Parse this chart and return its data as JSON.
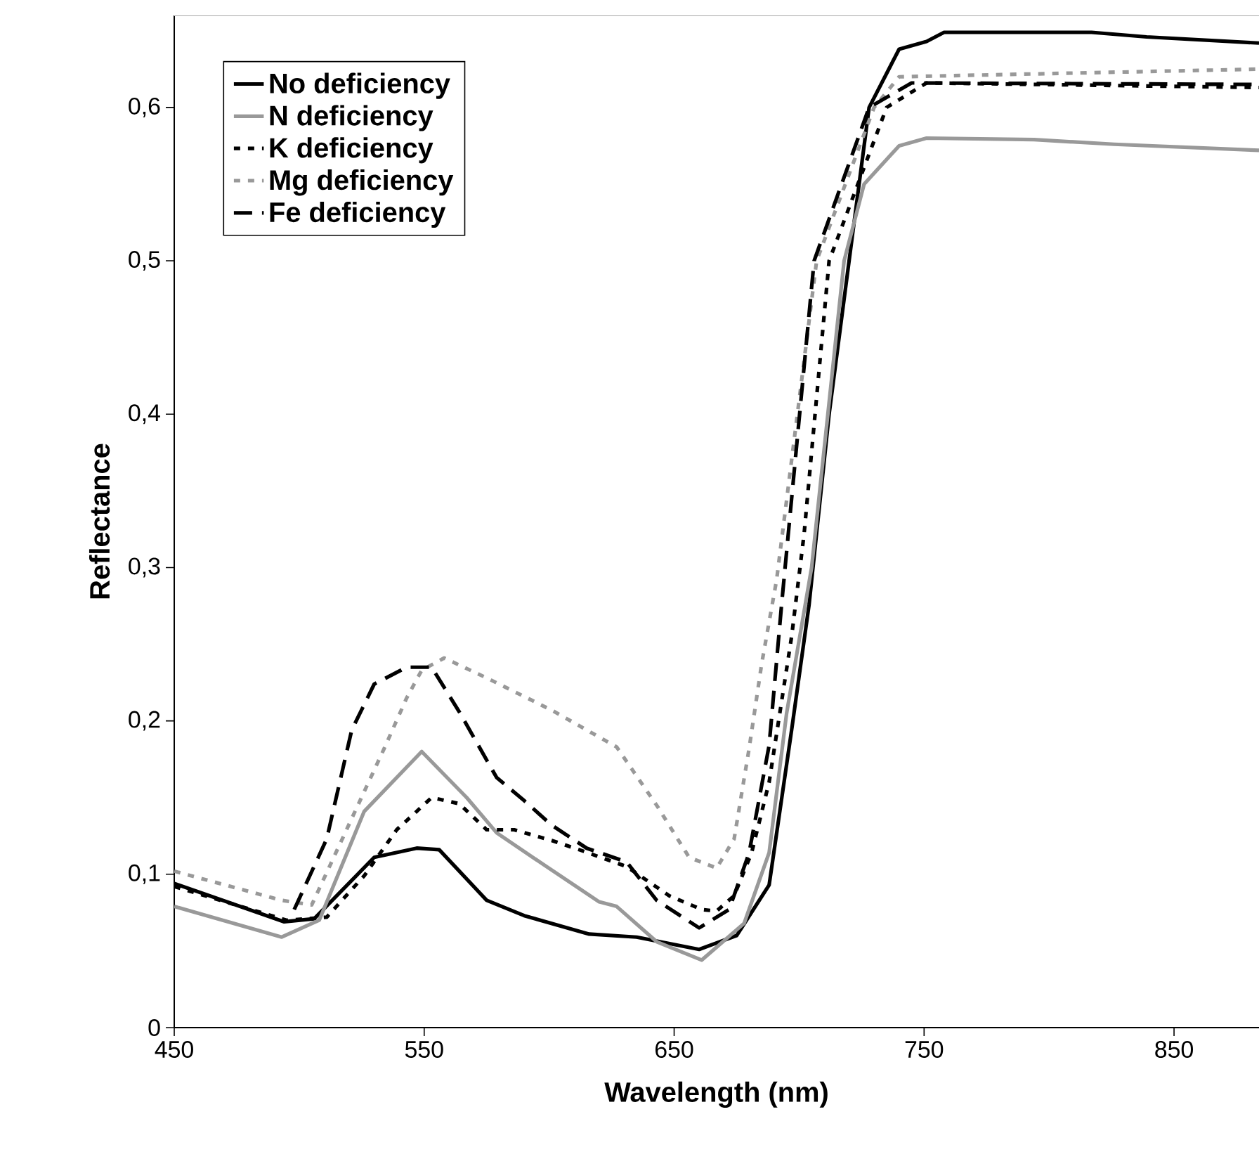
{
  "chart_data": {
    "type": "line",
    "xlabel": "Wavelength (nm)",
    "ylabel": "Reflectance",
    "xlim": [
      450,
      884
    ],
    "ylim": [
      0,
      0.66
    ],
    "xticks": [
      450,
      550,
      650,
      750,
      850
    ],
    "yticks": [
      0,
      {
        "value": 0.1,
        "label": "0,1"
      },
      {
        "value": 0.2,
        "label": "0,2"
      },
      {
        "value": 0.3,
        "label": "0,3"
      },
      {
        "value": 0.4,
        "label": "0,4"
      },
      {
        "value": 0.5,
        "label": "0,5"
      },
      {
        "value": 0.6,
        "label": "0,6"
      }
    ],
    "legend": "top left",
    "grid": false,
    "marker": "none",
    "series": [
      {
        "name": "No deficiency",
        "color": "#000000",
        "line_style": "solid",
        "x": [
          450,
          494,
          506,
          530,
          547,
          556,
          575,
          590,
          616,
          635,
          660,
          675,
          688,
          697,
          704,
          712,
          720,
          728,
          740,
          751,
          758,
          817,
          839,
          884
        ],
        "values": [
          0.094,
          0.069,
          0.071,
          0.111,
          0.117,
          0.116,
          0.083,
          0.073,
          0.061,
          0.059,
          0.051,
          0.06,
          0.093,
          0.194,
          0.276,
          0.4,
          0.5,
          0.6,
          0.638,
          0.643,
          0.649,
          0.649,
          0.646,
          0.642
        ]
      },
      {
        "name": "N deficiency",
        "color": "#999999",
        "line_style": "solid",
        "x": [
          450,
          493,
          508,
          526,
          549,
          567,
          579,
          598,
          620,
          627,
          643,
          661,
          678,
          688,
          695,
          705,
          718,
          726,
          740,
          751,
          794,
          826,
          884
        ],
        "values": [
          0.079,
          0.059,
          0.07,
          0.141,
          0.18,
          0.15,
          0.127,
          0.106,
          0.082,
          0.079,
          0.056,
          0.044,
          0.068,
          0.114,
          0.205,
          0.3,
          0.5,
          0.55,
          0.575,
          0.58,
          0.579,
          0.576,
          0.572
        ]
      },
      {
        "name": "K deficiency",
        "color": "#000000",
        "line_style": "dotted",
        "x": [
          450,
          495,
          511,
          526,
          539,
          553,
          564,
          575,
          586,
          601,
          612,
          631,
          648,
          661,
          667,
          674,
          681,
          688,
          697,
          702,
          712,
          735,
          751,
          884
        ],
        "values": [
          0.092,
          0.07,
          0.072,
          0.099,
          0.129,
          0.15,
          0.146,
          0.129,
          0.129,
          0.122,
          0.116,
          0.105,
          0.086,
          0.077,
          0.076,
          0.086,
          0.114,
          0.16,
          0.255,
          0.322,
          0.5,
          0.6,
          0.616,
          0.613
        ]
      },
      {
        "name": "Mg deficiency",
        "color": "#999999",
        "line_style": "dotted",
        "x": [
          450,
          493,
          505,
          534,
          543,
          549,
          558,
          575,
          601,
          627,
          643,
          656,
          667,
          674,
          680,
          685,
          691,
          707,
          730,
          740,
          884
        ],
        "values": [
          0.102,
          0.083,
          0.08,
          0.182,
          0.215,
          0.233,
          0.241,
          0.228,
          0.207,
          0.183,
          0.145,
          0.111,
          0.104,
          0.123,
          0.182,
          0.237,
          0.292,
          0.5,
          0.6,
          0.62,
          0.625
        ]
      },
      {
        "name": "Fe deficiency",
        "color": "#000000",
        "line_style": "dashed",
        "x": [
          498,
          511,
          521,
          530,
          543,
          553,
          564,
          579,
          590,
          601,
          615,
          631,
          643,
          660,
          672,
          680,
          688,
          693,
          706,
          728,
          745,
          884
        ],
        "values": [
          0.077,
          0.123,
          0.194,
          0.224,
          0.235,
          0.235,
          0.206,
          0.163,
          0.148,
          0.132,
          0.117,
          0.108,
          0.083,
          0.065,
          0.077,
          0.114,
          0.184,
          0.276,
          0.5,
          0.6,
          0.616,
          0.615
        ]
      }
    ]
  }
}
